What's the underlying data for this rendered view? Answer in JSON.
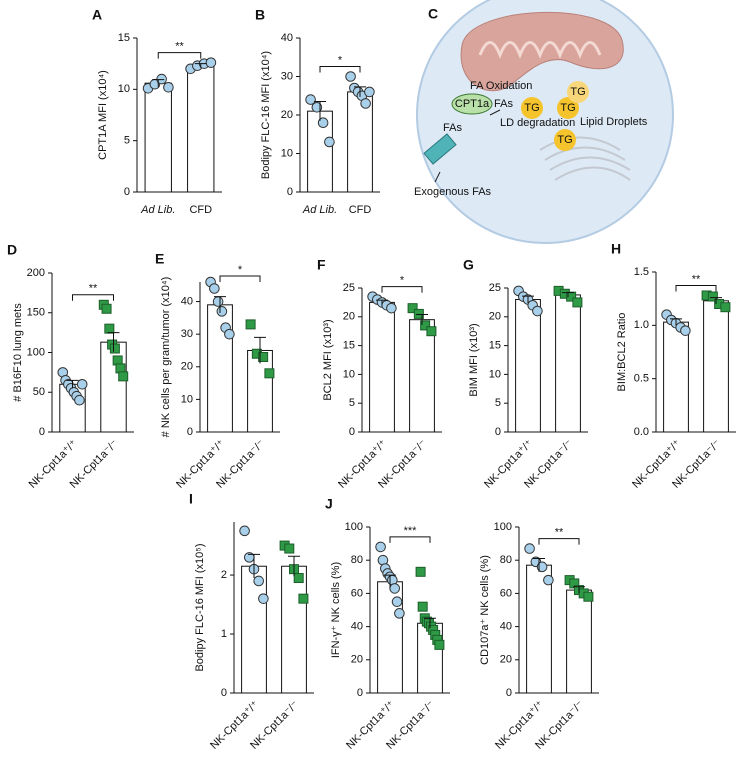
{
  "chart_data": [
    {
      "panel": "A",
      "type": "bar",
      "ylabel": "CPT1A MFI (x10⁴)",
      "categories": [
        "Ad Lib.",
        "CFD"
      ],
      "values": [
        10.6,
        12.3
      ],
      "errors": [
        0.35,
        0.2
      ],
      "points": [
        [
          10.1,
          10.5,
          11.0,
          10.2
        ],
        [
          12.0,
          12.3,
          12.5,
          12.6
        ]
      ],
      "colors": [
        "#a9d0ea",
        "#a9d0ea"
      ],
      "markers": [
        "circle",
        "circle"
      ],
      "ylim": [
        0,
        15
      ],
      "yticks": [
        0,
        5,
        10,
        15
      ],
      "significance": "**"
    },
    {
      "panel": "B",
      "type": "bar",
      "ylabel": "Bodipy FLC-16 MFI (x10⁴)",
      "categories": [
        "Ad Lib.",
        "CFD"
      ],
      "values": [
        21,
        26
      ],
      "errors": [
        2.5,
        1.3
      ],
      "points": [
        [
          24,
          22,
          18,
          13
        ],
        [
          30,
          27,
          26,
          25,
          23,
          26
        ]
      ],
      "colors": [
        "#a9d0ea",
        "#a9d0ea"
      ],
      "markers": [
        "circle",
        "circle"
      ],
      "ylim": [
        0,
        40
      ],
      "yticks": [
        0,
        10,
        20,
        30,
        40
      ],
      "significance": "*"
    },
    {
      "panel": "D",
      "type": "bar",
      "ylabel": "# B16F10 lung mets",
      "categories": [
        "NK-Cpt1a⁺/⁺",
        "NK-Cpt1a⁻/⁻"
      ],
      "values": [
        60,
        113
      ],
      "errors": [
        5,
        12
      ],
      "points": [
        [
          75,
          65,
          60,
          55,
          50,
          45,
          40,
          60
        ],
        [
          160,
          155,
          130,
          110,
          105,
          90,
          80,
          70
        ]
      ],
      "colors": [
        "#a9d0ea",
        "#2e9a46"
      ],
      "markers": [
        "circle",
        "square"
      ],
      "ylim": [
        0,
        200
      ],
      "yticks": [
        0,
        50,
        100,
        150,
        200
      ],
      "significance": "**"
    },
    {
      "panel": "E",
      "type": "bar",
      "ylabel": "# NK cells per gram/tumor (x10⁴)",
      "categories": [
        "NK-Cpt1a⁺/⁺",
        "NK-Cpt1a⁻/⁻"
      ],
      "values": [
        39,
        25
      ],
      "errors": [
        2.5,
        4
      ],
      "points": [
        [
          46,
          44,
          40,
          37,
          32,
          30
        ],
        [
          33,
          24,
          23,
          18
        ]
      ],
      "colors": [
        "#a9d0ea",
        "#2e9a46"
      ],
      "markers": [
        "circle",
        "square"
      ],
      "ylim": [
        0,
        46
      ],
      "yticks": [
        0,
        10,
        20,
        30,
        40
      ],
      "significance": "*"
    },
    {
      "panel": "F",
      "type": "bar",
      "ylabel": "BCL2 MFI (x10³)",
      "categories": [
        "NK-Cpt1a⁺/⁺",
        "NK-Cpt1a⁻/⁻"
      ],
      "values": [
        22.5,
        19.5
      ],
      "errors": [
        0.4,
        0.9
      ],
      "points": [
        [
          23.5,
          23,
          22.5,
          22,
          21.5
        ],
        [
          21.5,
          20.5,
          18.5,
          17.5
        ]
      ],
      "colors": [
        "#a9d0ea",
        "#2e9a46"
      ],
      "markers": [
        "circle",
        "square"
      ],
      "ylim": [
        0,
        25
      ],
      "yticks": [
        0,
        5,
        10,
        15,
        20,
        25
      ],
      "significance": "*"
    },
    {
      "panel": "G",
      "type": "bar",
      "ylabel": "BIM MFI (x10³)",
      "categories": [
        "NK-Cpt1a⁺/⁺",
        "NK-Cpt1a⁻/⁻"
      ],
      "values": [
        23,
        23.8
      ],
      "errors": [
        0.6,
        0.4
      ],
      "points": [
        [
          24.5,
          23.5,
          23,
          22,
          21
        ],
        [
          24.5,
          24,
          23.5,
          22.5
        ]
      ],
      "colors": [
        "#a9d0ea",
        "#2e9a46"
      ],
      "markers": [
        "circle",
        "square"
      ],
      "ylim": [
        0,
        25
      ],
      "yticks": [
        0,
        5,
        10,
        15,
        20,
        25
      ]
    },
    {
      "panel": "H",
      "type": "bar",
      "ylabel": "BIM:BCL2 Ratio",
      "categories": [
        "NK-Cpt1a⁺/⁺",
        "NK-Cpt1a⁻/⁻"
      ],
      "values": [
        1.03,
        1.23
      ],
      "errors": [
        0.03,
        0.03
      ],
      "points": [
        [
          1.1,
          1.05,
          1.02,
          0.98,
          0.95
        ],
        [
          1.28,
          1.27,
          1.2,
          1.17
        ]
      ],
      "colors": [
        "#a9d0ea",
        "#2e9a46"
      ],
      "markers": [
        "circle",
        "square"
      ],
      "ylim": [
        0,
        1.5
      ],
      "yticks": [
        {
          "value": 0,
          "label": "0.0"
        },
        0.5,
        {
          "value": 1,
          "label": "1.0"
        },
        1.5
      ],
      "significance": "**"
    },
    {
      "panel": "I",
      "type": "bar",
      "ylabel": "Bodipy FLC-16 MFI (x10⁵)",
      "categories": [
        "NK-Cpt1a⁺/⁺",
        "NK-Cpt1a⁻/⁻"
      ],
      "values": [
        2.15,
        2.15
      ],
      "errors": [
        0.2,
        0.17
      ],
      "points": [
        [
          2.75,
          2.3,
          2.1,
          1.9,
          1.6
        ],
        [
          2.5,
          2.45,
          2.1,
          1.95,
          1.6
        ]
      ],
      "colors": [
        "#a9d0ea",
        "#2e9a46"
      ],
      "markers": [
        "circle",
        "square"
      ],
      "ylim": [
        0,
        2.9
      ],
      "yticks": [
        0,
        1,
        2
      ]
    },
    {
      "panel": "J",
      "type": "bar",
      "ylabel": "IFN-γ⁺ NK cells (%)",
      "categories": [
        "NK-Cpt1a⁺/⁺",
        "NK-Cpt1a⁻/⁻"
      ],
      "values": [
        67,
        42
      ],
      "errors": [
        4,
        3
      ],
      "points": [
        [
          88,
          80,
          75,
          72,
          70,
          68,
          63,
          55,
          48
        ],
        [
          73,
          52,
          45,
          43,
          42,
          40,
          38,
          35,
          32,
          29
        ]
      ],
      "colors": [
        "#a9d0ea",
        "#2e9a46"
      ],
      "markers": [
        "circle",
        "square"
      ],
      "ylim": [
        0,
        100
      ],
      "yticks": [
        0,
        20,
        40,
        60,
        80,
        100
      ],
      "significance": "***"
    },
    {
      "type": "bar",
      "ylabel": "CD107a⁺ NK cells (%)",
      "categories": [
        "NK-Cpt1a⁺/⁺",
        "NK-Cpt1a⁻/⁻"
      ],
      "values": [
        77,
        62
      ],
      "errors": [
        4,
        2
      ],
      "points": [
        [
          87,
          79,
          76,
          68
        ],
        [
          68,
          66,
          62,
          60,
          58
        ]
      ],
      "colors": [
        "#a9d0ea",
        "#2e9a46"
      ],
      "markers": [
        "circle",
        "square"
      ],
      "ylim": [
        0,
        100
      ],
      "yticks": [
        0,
        20,
        40,
        60,
        80,
        100
      ],
      "significance": "**"
    }
  ],
  "diagram": {
    "panel": "C",
    "labels": {
      "fa_oxidation": "FA Oxidation",
      "cpt1a": "CPT1a",
      "fas_mito": "FAs",
      "fas_cell": "FAs",
      "ld_degradation": "LD degradation",
      "tg": [
        "TG",
        "TG",
        "TG",
        "TG"
      ],
      "lipid_droplets": "Lipid Droplets",
      "exogenous_fas": "Exogenous FAs"
    }
  }
}
